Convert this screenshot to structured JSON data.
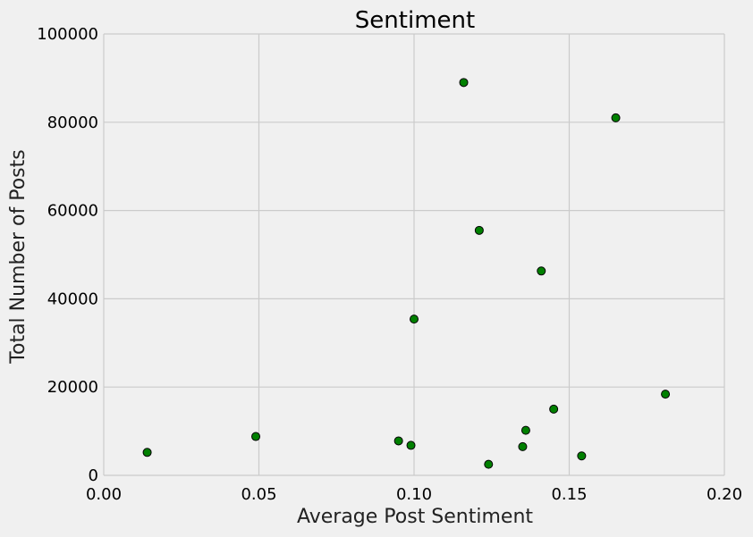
{
  "chart_data": {
    "type": "scatter",
    "title": "Sentiment",
    "xlabel": "Average Post Sentiment",
    "ylabel": "Total Number of Posts",
    "xlim": [
      0.0,
      0.2
    ],
    "ylim": [
      0,
      100000
    ],
    "x_ticks": [
      "0.00",
      "0.05",
      "0.10",
      "0.15",
      "0.20"
    ],
    "y_ticks": [
      "0",
      "20000",
      "40000",
      "60000",
      "80000",
      "100000"
    ],
    "grid": true,
    "marker_color": "#008000",
    "background_color": "#f0f0f0",
    "points": [
      {
        "x": 0.014,
        "y": 5200
      },
      {
        "x": 0.049,
        "y": 8800
      },
      {
        "x": 0.095,
        "y": 7800
      },
      {
        "x": 0.099,
        "y": 6800
      },
      {
        "x": 0.1,
        "y": 35400
      },
      {
        "x": 0.116,
        "y": 89000
      },
      {
        "x": 0.121,
        "y": 55500
      },
      {
        "x": 0.124,
        "y": 2500
      },
      {
        "x": 0.135,
        "y": 6500
      },
      {
        "x": 0.136,
        "y": 10200
      },
      {
        "x": 0.141,
        "y": 46300
      },
      {
        "x": 0.145,
        "y": 15000
      },
      {
        "x": 0.154,
        "y": 4400
      },
      {
        "x": 0.165,
        "y": 81000
      },
      {
        "x": 0.181,
        "y": 18400
      }
    ]
  }
}
